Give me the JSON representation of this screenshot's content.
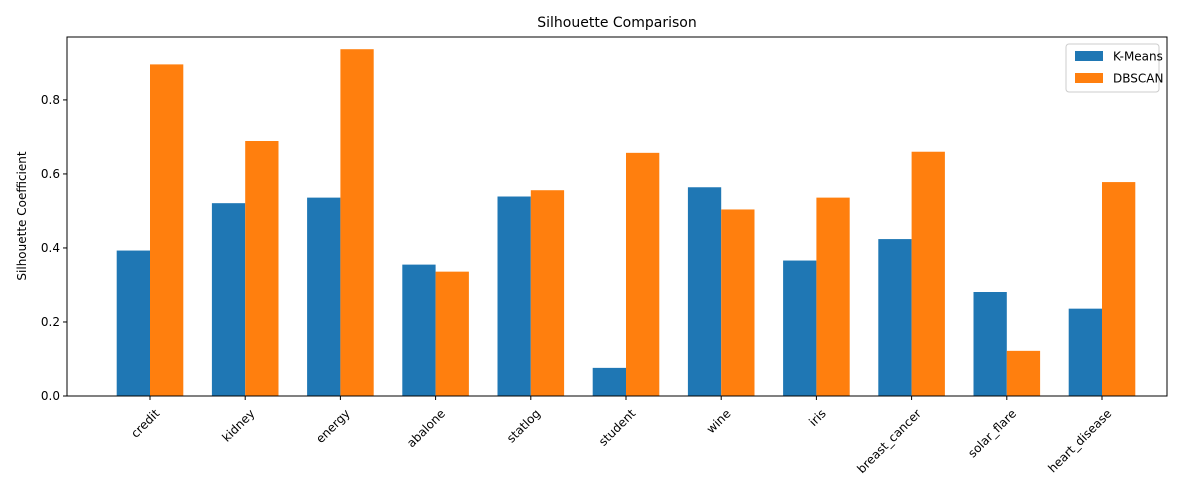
{
  "chart_data": {
    "type": "bar",
    "title": "Silhouette Comparison",
    "xlabel": "",
    "ylabel": "Silhouette Coefficient",
    "categories": [
      "credit",
      "kidney",
      "energy",
      "abalone",
      "statlog",
      "student",
      "wine",
      "iris",
      "breast_cancer",
      "solar_flare",
      "heart_disease"
    ],
    "series": [
      {
        "name": "K-Means",
        "color": "#1f77b4",
        "values": [
          0.393,
          0.521,
          0.536,
          0.355,
          0.539,
          0.076,
          0.564,
          0.366,
          0.424,
          0.281,
          0.236
        ]
      },
      {
        "name": "DBSCAN",
        "color": "#ff7f0e",
        "values": [
          0.896,
          0.689,
          0.937,
          0.336,
          0.556,
          0.657,
          0.504,
          0.536,
          0.66,
          0.122,
          0.578
        ]
      }
    ],
    "ylim": [
      0,
      0.97
    ],
    "yticks": [
      "0.0",
      "0.2",
      "0.4",
      "0.6",
      "0.8"
    ],
    "ytick_values": [
      0,
      0.2,
      0.4,
      0.6,
      0.8
    ],
    "xtick_rotation": 45,
    "grid": false,
    "legend_position": "top-right"
  }
}
